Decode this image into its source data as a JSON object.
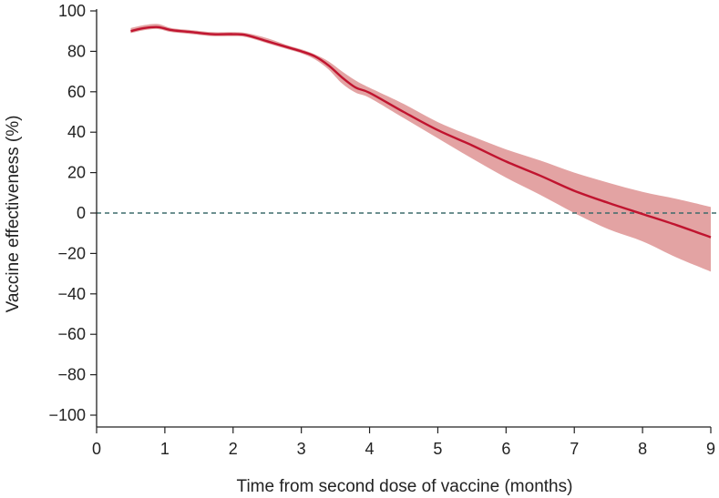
{
  "chart_data": {
    "type": "line",
    "title": "",
    "xlabel": "Time from second dose of vaccine (months)",
    "ylabel": "Vaccine effectiveness (%)",
    "xlim": [
      0,
      9
    ],
    "ylim": [
      -100,
      100
    ],
    "x_ticks": [
      0,
      1,
      2,
      3,
      4,
      5,
      6,
      7,
      8,
      9
    ],
    "y_ticks": [
      100,
      80,
      60,
      40,
      20,
      0,
      -20,
      -40,
      -60,
      -80,
      -100
    ],
    "x_tick_labels": [
      "0",
      "1",
      "2",
      "3",
      "4",
      "5",
      "6",
      "7",
      "8",
      "9"
    ],
    "y_tick_labels": [
      "100",
      "80",
      "60",
      "40",
      "20",
      "0",
      "−20",
      "−40",
      "−60",
      "−80",
      "−100"
    ],
    "grid": false,
    "legend": "none",
    "reference_line": {
      "y": 0,
      "style": "dashed",
      "color": "#3d6b6b"
    },
    "series": [
      {
        "x": [
          0.5,
          0.7,
          0.9,
          1.1,
          1.4,
          1.7,
          2.0,
          2.2,
          2.5,
          2.8,
          3.0,
          3.2,
          3.4,
          3.6,
          3.8,
          4.0,
          4.5,
          5.0,
          5.5,
          6.0,
          6.5,
          7.0,
          7.5,
          8.0,
          8.5,
          9.0
        ],
        "y": [
          90,
          91.5,
          92,
          90.5,
          89.5,
          88.5,
          88.5,
          88,
          85,
          82,
          80,
          77.5,
          73,
          67,
          62,
          59.5,
          50,
          41,
          33.5,
          25.5,
          18.5,
          11,
          5,
          -0.5,
          -6,
          -12
        ],
        "lower": [
          89,
          90.5,
          91,
          89.5,
          88.5,
          87.5,
          87.5,
          87,
          84,
          81,
          79,
          76,
          71,
          64,
          59.5,
          57,
          47,
          37,
          27,
          17.5,
          9,
          0,
          -8,
          -14,
          -22,
          -29
        ],
        "upper": [
          91.5,
          93,
          93.5,
          91.5,
          90.5,
          89.5,
          89.5,
          89,
          86.5,
          83,
          81,
          78.5,
          75,
          70,
          65.5,
          62,
          54,
          45,
          38,
          31.5,
          26,
          20,
          15,
          10.5,
          7,
          3
        ],
        "color": "#c0142f",
        "band_color": "#e3a3a3"
      }
    ]
  }
}
